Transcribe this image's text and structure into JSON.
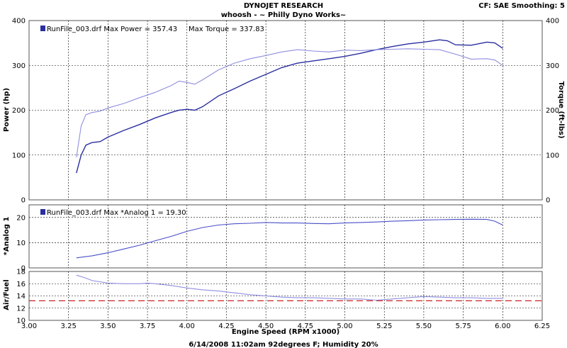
{
  "header": {
    "title": "DYNOJET RESEARCH",
    "subtitle": "whoosh - ~ Philly Dyno Works~",
    "correction": "CF: SAE  Smoothing: 5"
  },
  "footer": {
    "text": "6/14/2008  11:02am  92degrees F; Humidity 20%"
  },
  "colors": {
    "power": "#2a2f9e",
    "torque": "#8e8ee0",
    "analog": "#4a4fc8",
    "afr": "#8e8ee0",
    "afr_target": "#cc2222"
  },
  "chart_data": [
    {
      "type": "line",
      "panel": "power",
      "legend": "RunFile_003.drf Max Power = 357.43     Max Torque = 337.83",
      "ylabel_left": "Power (hp)",
      "ylabel_right": "Torque (ft-lbs)",
      "ylim": [
        0,
        400
      ],
      "yticks": [
        "0",
        "100",
        "200",
        "300",
        "400"
      ],
      "grid": true,
      "series": [
        {
          "role": "power",
          "x": [
            3.3,
            3.33,
            3.36,
            3.4,
            3.45,
            3.5,
            3.6,
            3.7,
            3.8,
            3.9,
            3.95,
            4.0,
            4.05,
            4.1,
            4.2,
            4.3,
            4.4,
            4.5,
            4.6,
            4.7,
            4.8,
            4.9,
            5.0,
            5.1,
            5.2,
            5.3,
            5.4,
            5.5,
            5.6,
            5.65,
            5.7,
            5.8,
            5.9,
            5.95,
            6.0
          ],
          "values": [
            60,
            100,
            122,
            128,
            130,
            140,
            155,
            168,
            183,
            195,
            200,
            202,
            200,
            208,
            232,
            248,
            265,
            280,
            295,
            305,
            310,
            315,
            320,
            327,
            335,
            342,
            348,
            352,
            357,
            355,
            346,
            345,
            352,
            350,
            338
          ]
        },
        {
          "role": "torque",
          "x": [
            3.3,
            3.33,
            3.36,
            3.4,
            3.45,
            3.5,
            3.6,
            3.7,
            3.8,
            3.9,
            3.95,
            4.0,
            4.05,
            4.1,
            4.2,
            4.3,
            4.4,
            4.5,
            4.6,
            4.7,
            4.8,
            4.9,
            5.0,
            5.1,
            5.2,
            5.3,
            5.4,
            5.5,
            5.6,
            5.7,
            5.8,
            5.9,
            5.95,
            6.0
          ],
          "values": [
            95,
            165,
            190,
            195,
            198,
            205,
            215,
            228,
            240,
            255,
            265,
            262,
            258,
            268,
            290,
            305,
            315,
            322,
            330,
            335,
            332,
            330,
            334,
            333,
            335,
            336,
            337,
            336,
            335,
            325,
            314,
            315,
            312,
            300
          ]
        }
      ]
    },
    {
      "type": "line",
      "panel": "analog",
      "legend": "RunFile_003.drf Max *Analog 1 = 19.30",
      "ylabel_left": "*Analog 1",
      "ylim": [
        0,
        25
      ],
      "yticks": [
        "0",
        "10",
        "20"
      ],
      "grid": true,
      "series": [
        {
          "role": "analog",
          "x": [
            3.3,
            3.4,
            3.5,
            3.6,
            3.7,
            3.8,
            3.9,
            4.0,
            4.1,
            4.2,
            4.3,
            4.4,
            4.5,
            4.6,
            4.7,
            4.8,
            4.9,
            5.0,
            5.1,
            5.2,
            5.3,
            5.4,
            5.5,
            5.6,
            5.7,
            5.8,
            5.9,
            5.95,
            6.0
          ],
          "values": [
            4,
            4.8,
            6,
            7.5,
            9,
            10.8,
            12.5,
            14.5,
            16,
            17,
            17.5,
            17.7,
            18,
            17.8,
            17.8,
            17.6,
            17.5,
            17.8,
            18,
            18.2,
            18.5,
            18.7,
            19,
            19.1,
            19.2,
            19.3,
            19.2,
            18.5,
            17
          ]
        }
      ]
    },
    {
      "type": "line",
      "panel": "afr",
      "ylabel_left": "Air/Fuel",
      "ylim": [
        10,
        18
      ],
      "yticks": [
        "10",
        "12",
        "14",
        "16",
        "18"
      ],
      "grid": true,
      "xlabel": "Engine Speed (RPM x1000)",
      "xlim": [
        3.0,
        6.25
      ],
      "xticks": [
        "3.00",
        "3.25",
        "3.50",
        "3.75",
        "4.00",
        "4.25",
        "4.50",
        "4.75",
        "5.00",
        "5.25",
        "5.50",
        "5.75",
        "6.00",
        "6.25"
      ],
      "target": 13.2,
      "series": [
        {
          "role": "afr",
          "x": [
            3.3,
            3.35,
            3.4,
            3.5,
            3.6,
            3.7,
            3.75,
            3.8,
            3.9,
            4.0,
            4.1,
            4.2,
            4.3,
            4.4,
            4.5,
            4.6,
            4.7,
            4.8,
            4.9,
            5.0,
            5.1,
            5.2,
            5.3,
            5.4,
            5.5,
            5.6,
            5.7,
            5.8,
            5.9,
            6.0
          ],
          "values": [
            17.4,
            17,
            16.5,
            16.1,
            16,
            16,
            16.1,
            16,
            15.7,
            15.3,
            15,
            14.8,
            14.5,
            14.2,
            14,
            13.8,
            13.7,
            13.7,
            13.6,
            13.5,
            13.5,
            13.3,
            13.5,
            13.7,
            13.9,
            13.8,
            13.7,
            13.7,
            13.6,
            13.6
          ]
        }
      ]
    }
  ]
}
